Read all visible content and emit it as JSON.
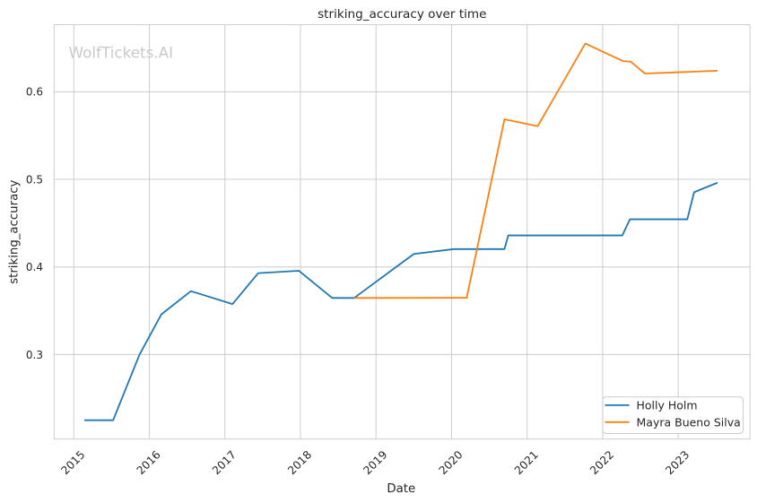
{
  "chart_data": {
    "type": "line",
    "title": "striking_accuracy over time",
    "xlabel": "Date",
    "ylabel": "striking_accuracy",
    "watermark": "WolfTickets.AI",
    "grid": true,
    "legend_position": "lower right",
    "xlim": [
      2014.74,
      2023.95
    ],
    "ylim": [
      0.2035,
      0.6765
    ],
    "x_ticks": [
      {
        "value": 2015,
        "label": "2015"
      },
      {
        "value": 2016,
        "label": "2016"
      },
      {
        "value": 2017,
        "label": "2017"
      },
      {
        "value": 2018,
        "label": "2018"
      },
      {
        "value": 2019,
        "label": "2019"
      },
      {
        "value": 2020,
        "label": "2020"
      },
      {
        "value": 2021,
        "label": "2021"
      },
      {
        "value": 2022,
        "label": "2022"
      },
      {
        "value": 2023,
        "label": "2023"
      }
    ],
    "y_ticks": [
      {
        "value": 0.3,
        "label": "0.3"
      },
      {
        "value": 0.4,
        "label": "0.4"
      },
      {
        "value": 0.5,
        "label": "0.5"
      },
      {
        "value": 0.6,
        "label": "0.6"
      }
    ],
    "series": [
      {
        "name": "Holly Holm",
        "color": "#1f77b4",
        "points": [
          [
            2015.14,
            0.225
          ],
          [
            2015.52,
            0.225
          ],
          [
            2015.87,
            0.3
          ],
          [
            2016.16,
            0.346
          ],
          [
            2016.55,
            0.3724
          ],
          [
            2017.1,
            0.3576
          ],
          [
            2017.44,
            0.3929
          ],
          [
            2017.98,
            0.3956
          ],
          [
            2018.42,
            0.3646
          ],
          [
            2018.71,
            0.3646
          ],
          [
            2019.5,
            0.4148
          ],
          [
            2020.03,
            0.4204
          ],
          [
            2020.7,
            0.4204
          ],
          [
            2020.75,
            0.436
          ],
          [
            2022.26,
            0.436
          ],
          [
            2022.36,
            0.4544
          ],
          [
            2023.12,
            0.4544
          ],
          [
            2023.21,
            0.4853
          ],
          [
            2023.52,
            0.4962
          ]
        ]
      },
      {
        "name": "Mayra Bueno Silva",
        "color": "#ff7f0e",
        "points": [
          [
            2018.71,
            0.3646
          ],
          [
            2020.2,
            0.3648
          ],
          [
            2020.7,
            0.5686
          ],
          [
            2021.14,
            0.5607
          ],
          [
            2021.77,
            0.655
          ],
          [
            2022.27,
            0.635
          ],
          [
            2022.37,
            0.6344
          ],
          [
            2022.56,
            0.6208
          ],
          [
            2023.52,
            0.624
          ]
        ]
      }
    ],
    "colors": {
      "grid": "#cccccc",
      "spine": "#cccccc",
      "text": "#262626",
      "watermark": "#cacaca"
    }
  }
}
